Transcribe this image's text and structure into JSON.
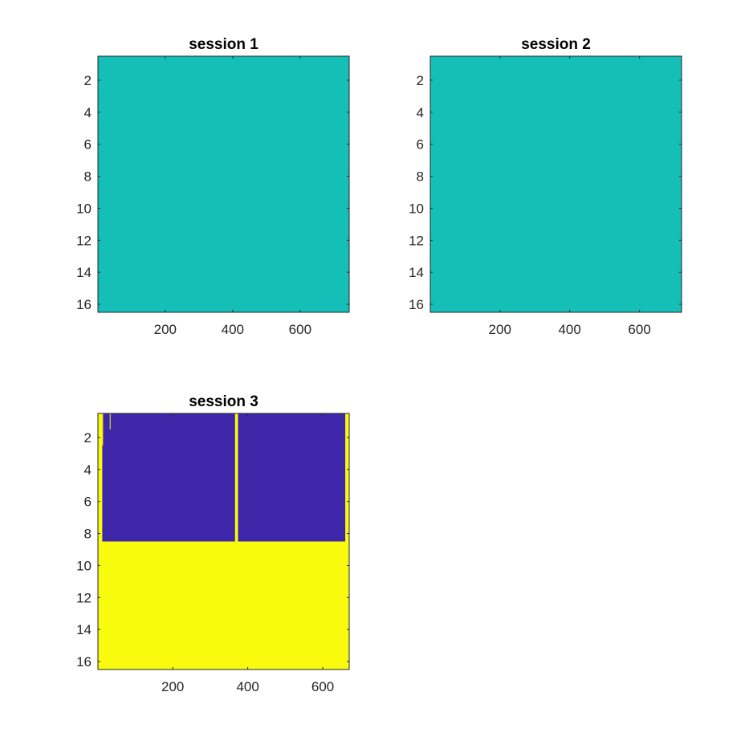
{
  "colors": {
    "uniform": "#14bfb8",
    "low": "#3e26a8",
    "high": "#f9fb0e",
    "axis": "#262626"
  },
  "chart_data": [
    {
      "type": "heatmap",
      "title": "session 1",
      "xlim": [
        0.5,
        745.5
      ],
      "ylim": [
        0.5,
        16.5
      ],
      "y_direction": "reverse",
      "xticks": [
        200,
        400,
        600
      ],
      "yticks": [
        2,
        4,
        6,
        8,
        10,
        12,
        14,
        16
      ],
      "values": "uniform",
      "regions": []
    },
    {
      "type": "heatmap",
      "title": "session 2",
      "xlim": [
        0.5,
        720.5
      ],
      "ylim": [
        0.5,
        16.5
      ],
      "y_direction": "reverse",
      "xticks": [
        200,
        400,
        600
      ],
      "yticks": [
        2,
        4,
        6,
        8,
        10,
        12,
        14,
        16
      ],
      "values": "uniform",
      "regions": []
    },
    {
      "type": "heatmap",
      "title": "session 3",
      "xlim": [
        0.5,
        670.5
      ],
      "ylim": [
        0.5,
        16.5
      ],
      "y_direction": "reverse",
      "xticks": [
        200,
        400,
        600
      ],
      "yticks": [
        2,
        4,
        6,
        8,
        10,
        12,
        14,
        16
      ],
      "values": "binary",
      "background": "high",
      "regions": [
        {
          "level": "low",
          "x": [
            12,
            366
          ],
          "y": [
            0.5,
            8.5
          ]
        },
        {
          "level": "high",
          "x": [
            12,
            13
          ],
          "y": [
            0.5,
            2.5
          ]
        },
        {
          "level": "high",
          "x": [
            32,
            34
          ],
          "y": [
            0.5,
            1.5
          ]
        },
        {
          "level": "low",
          "x": [
            374,
            660
          ],
          "y": [
            0.5,
            8.5
          ]
        },
        {
          "level": "high",
          "x": [
            662,
            664
          ],
          "y": [
            0.5,
            8.5
          ]
        }
      ]
    }
  ]
}
